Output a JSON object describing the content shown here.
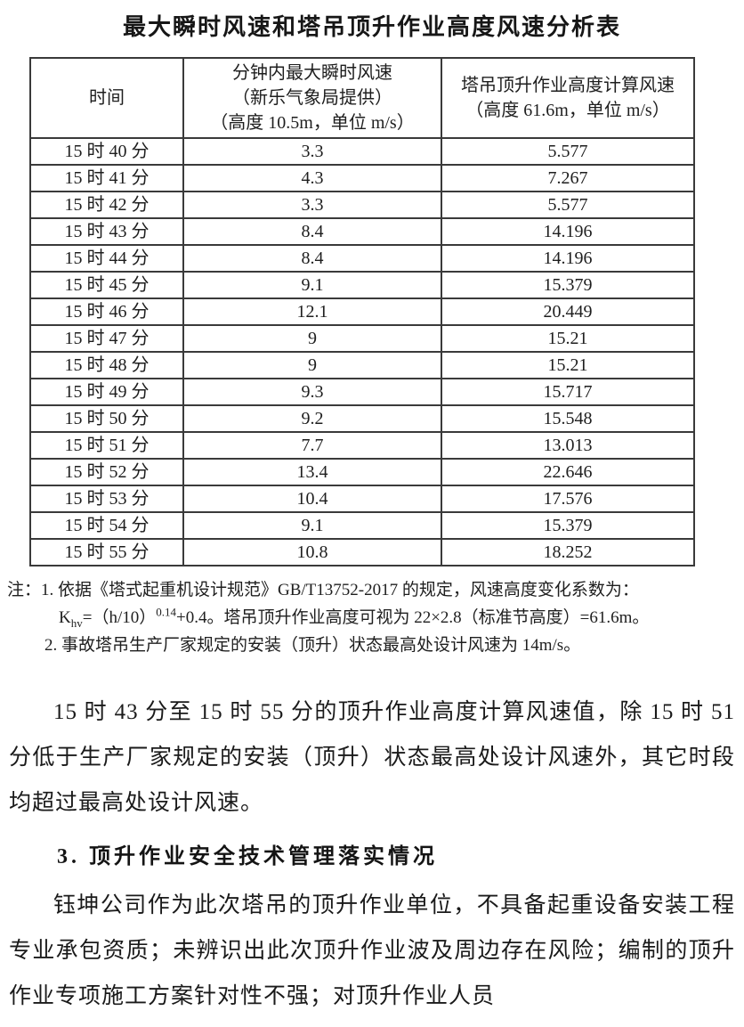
{
  "title": "最大瞬时风速和塔吊顶升作业高度风速分析表",
  "table": {
    "headers": {
      "time": "时间",
      "instant": {
        "line1": "分钟内最大瞬时风速",
        "line2": "（新乐气象局提供）",
        "line3": "（高度 10.5m，单位 m/s）"
      },
      "calc": {
        "line1": "塔吊顶升作业高度计算风速",
        "line2": "（高度 61.6m，单位 m/s）"
      }
    },
    "rows": [
      [
        "15 时 40 分",
        "3.3",
        "5.577"
      ],
      [
        "15 时 41 分",
        "4.3",
        "7.267"
      ],
      [
        "15 时 42 分",
        "3.3",
        "5.577"
      ],
      [
        "15 时 43 分",
        "8.4",
        "14.196"
      ],
      [
        "15 时 44 分",
        "8.4",
        "14.196"
      ],
      [
        "15 时 45 分",
        "9.1",
        "15.379"
      ],
      [
        "15 时 46 分",
        "12.1",
        "20.449"
      ],
      [
        "15 时 47 分",
        "9",
        "15.21"
      ],
      [
        "15 时 48 分",
        "9",
        "15.21"
      ],
      [
        "15 时 49 分",
        "9.3",
        "15.717"
      ],
      [
        "15 时 50 分",
        "9.2",
        "15.548"
      ],
      [
        "15 时 51 分",
        "7.7",
        "13.013"
      ],
      [
        "15 时 52 分",
        "13.4",
        "22.646"
      ],
      [
        "15 时 53 分",
        "10.4",
        "17.576"
      ],
      [
        "15 时 54 分",
        "9.1",
        "15.379"
      ],
      [
        "15 时 55 分",
        "10.8",
        "18.252"
      ]
    ]
  },
  "notes": {
    "note1_lead": "注：1. 依据《塔式起重机设计规范》GB/T13752-2017 的规定，风速高度变化系数为：",
    "formula": {
      "base": "K",
      "sub": "hv",
      "mid": "=（h/10）",
      "sup": "0.14",
      "rest": "+0.4。塔吊顶升作业高度可视为 22×2.8（标准节高度）=61.6m。"
    },
    "note2": "2. 事故塔吊生产厂家规定的安装（顶升）状态最高处设计风速为 14m/s。"
  },
  "paragraphs": {
    "analysis": "15 时 43 分至 15 时 55 分的顶升作业高度计算风速值，除 15 时 51 分低于生产厂家规定的安装（顶升）状态最高处设计风速外，其它时段均超过最高处设计风速。",
    "heading3": "3. 顶升作业安全技术管理落实情况",
    "yukun": "钰坤公司作为此次塔吊的顶升作业单位，不具备起重设备安装工程专业承包资质；未辨识出此次顶升作业波及周边存在风险；编制的顶升作业专项施工方案针对性不强；对顶升作业人员"
  }
}
